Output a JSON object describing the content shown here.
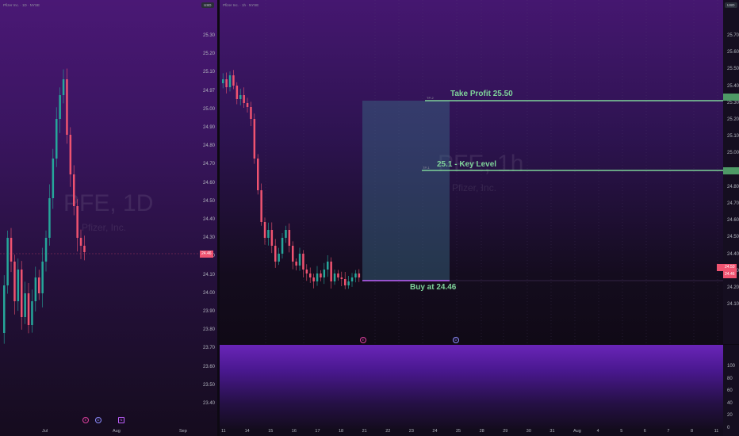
{
  "left_chart": {
    "legend": "Pfizer Inc. · 1D · NYSE",
    "unit": "USD",
    "watermark_symbol": "PFE, 1D",
    "watermark_name": "Pfizer, Inc.",
    "price_axis": [
      "25.30",
      "25.20",
      "25.10",
      "24.97",
      "25.00",
      "24.90",
      "24.80",
      "24.70",
      "24.60",
      "24.50",
      "24.40",
      "24.30",
      "24.20",
      "24.10",
      "24.00",
      "23.90",
      "23.80",
      "23.70",
      "23.60",
      "23.50",
      "23.40"
    ],
    "time_axis": [
      "Jul",
      "Aug",
      "Sep"
    ],
    "current_price": "24.46"
  },
  "right_chart": {
    "legend": "Pfizer Inc. · 1h · NYSE",
    "unit": "USD",
    "watermark_symbol": "PFE, 1h",
    "watermark_name": "Pfizer, Inc.",
    "price_axis": [
      "25.70",
      "25.60",
      "25.50",
      "25.40",
      "25.30",
      "25.20",
      "25.10",
      "25.00",
      "24.90",
      "24.80",
      "24.70",
      "24.60",
      "24.50",
      "24.40",
      "24.30",
      "24.20",
      "24.10"
    ],
    "time_axis": [
      "11",
      "14",
      "15",
      "16",
      "17",
      "18",
      "21",
      "22",
      "23",
      "24",
      "25",
      "28",
      "29",
      "30",
      "31",
      "Aug",
      "4",
      "5",
      "6",
      "7",
      "8",
      "11"
    ],
    "take_profit_label": "Take Profit 25.50",
    "tp2_tag": "TP-2",
    "key_level_label": "25.1 - Key Level",
    "tp1_tag": "TP-1",
    "buy_label": "Buy at 24.46",
    "current_price": "24.50",
    "entry_price": "24.46"
  },
  "indicator_pane": {
    "axis": [
      "100",
      "80",
      "60",
      "40",
      "20",
      "0"
    ]
  },
  "colors": {
    "up": "#26a69a",
    "down": "#ef5370",
    "level": "#7fd39a",
    "zone": "#3a6a85"
  }
}
